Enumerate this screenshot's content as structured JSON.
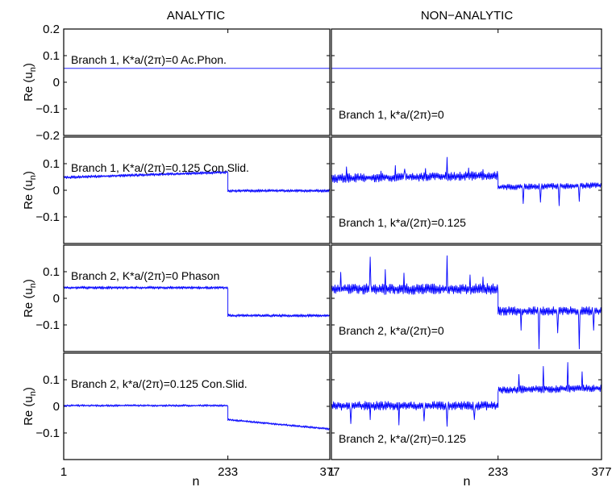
{
  "figure": {
    "column_titles": [
      "ANALYTIC",
      "NON−ANALYTIC"
    ],
    "x_label": "n",
    "x_ticks": [
      1,
      233,
      377
    ],
    "x_tick_labels": [
      "1",
      "233",
      "377"
    ],
    "y_label": "Re (u_n)",
    "line_color": "#0000ff"
  },
  "chart_data": [
    {
      "type": "line",
      "row": 0,
      "col": 0,
      "annotation": "Branch 1, K*a/(2π)=0 Ac.Phon.",
      "ylim": [
        -0.2,
        0.2
      ],
      "y_ticks": [
        0.2,
        0.1,
        0,
        -0.1,
        -0.2
      ],
      "y_tick_labels": [
        "0.2",
        "0.1",
        "0",
        "−0.1",
        "−0.2"
      ],
      "series": [
        {
          "segments": [
            {
              "x0": 1,
              "x1": 377,
              "y0": 0.052,
              "y1": 0.052,
              "noise": 0
            }
          ]
        }
      ]
    },
    {
      "type": "line",
      "row": 0,
      "col": 1,
      "annotation": "Branch 1, k*a/(2π)=0",
      "ylim": [
        -0.2,
        0.2
      ],
      "y_ticks": [
        0.2,
        0.1,
        0,
        -0.1,
        -0.2
      ],
      "y_tick_labels": [],
      "series": [
        {
          "segments": [
            {
              "x0": 1,
              "x1": 377,
              "y0": 0.052,
              "y1": 0.052,
              "noise": 0
            }
          ]
        }
      ]
    },
    {
      "type": "line",
      "row": 1,
      "col": 0,
      "annotation": "Branch 1, K*a/(2π)=0.125 Con.Slid.",
      "ylim": [
        -0.2,
        0.2
      ],
      "y_ticks": [
        0.1,
        0,
        -0.1
      ],
      "y_tick_labels": [
        "0.1",
        "0",
        "−0.1"
      ],
      "series": [
        {
          "segments": [
            {
              "x0": 1,
              "x1": 233,
              "y0": 0.048,
              "y1": 0.068,
              "noise": 0.004
            },
            {
              "x0": 233,
              "x1": 377,
              "y0": -0.002,
              "y1": -0.002,
              "noise": 0.004
            }
          ]
        }
      ]
    },
    {
      "type": "line",
      "row": 1,
      "col": 1,
      "annotation": "Branch 1, k*a/(2π)=0.125",
      "ylim": [
        -0.2,
        0.2
      ],
      "y_ticks": [
        0.1,
        0,
        -0.1
      ],
      "y_tick_labels": [],
      "series": [
        {
          "segments": [
            {
              "x0": 1,
              "x1": 233,
              "y0": 0.045,
              "y1": 0.055,
              "noise": 0.012,
              "spikes": [
                [
                  22,
                  0.088
                ],
                [
                  70,
                  0.072
                ],
                [
                  90,
                  0.093
                ],
                [
                  103,
                  0.08
                ],
                [
                  132,
                  0.082
                ],
                [
                  162,
                  0.124
                ],
                [
                  192,
                  0.084
                ],
                [
                  212,
                  0.078
                ]
              ]
            },
            {
              "x0": 233,
              "x1": 377,
              "y0": 0.012,
              "y1": 0.018,
              "noise": 0.008,
              "spikes": [
                [
                  268,
                  -0.05
                ],
                [
                  292,
                  -0.045
                ],
                [
                  318,
                  -0.058
                ],
                [
                  346,
                  -0.042
                ]
              ]
            }
          ]
        }
      ]
    },
    {
      "type": "line",
      "row": 2,
      "col": 0,
      "annotation": "Branch 2, K*a/(2π)=0 Phason",
      "ylim": [
        -0.2,
        0.2
      ],
      "y_ticks": [
        0.1,
        0,
        -0.1
      ],
      "y_tick_labels": [
        "0.1",
        "0",
        "−0.1"
      ],
      "series": [
        {
          "segments": [
            {
              "x0": 1,
              "x1": 233,
              "y0": 0.04,
              "y1": 0.04,
              "noise": 0.004
            },
            {
              "x0": 233,
              "x1": 377,
              "y0": -0.065,
              "y1": -0.065,
              "noise": 0.004
            }
          ]
        }
      ]
    },
    {
      "type": "line",
      "row": 2,
      "col": 1,
      "annotation": "Branch 2, k*a/(2π)=0",
      "ylim": [
        -0.2,
        0.2
      ],
      "y_ticks": [
        0.1,
        0,
        -0.1
      ],
      "y_tick_labels": [],
      "series": [
        {
          "segments": [
            {
              "x0": 1,
              "x1": 233,
              "y0": 0.035,
              "y1": 0.035,
              "noise": 0.015,
              "spikes": [
                [
                  14,
                  0.098
                ],
                [
                  55,
                  0.155
                ],
                [
                  76,
                  0.108
                ],
                [
                  102,
                  0.095
                ],
                [
                  162,
                  0.16
                ],
                [
                  194,
                  0.088
                ],
                [
                  212,
                  0.08
                ]
              ]
            },
            {
              "x0": 233,
              "x1": 377,
              "y0": -0.048,
              "y1": -0.048,
              "noise": 0.012,
              "spikes": [
                [
                  265,
                  -0.12
                ],
                [
                  290,
                  -0.19
                ],
                [
                  316,
                  -0.13
                ],
                [
                  346,
                  -0.19
                ],
                [
                  366,
                  -0.12
                ]
              ]
            }
          ]
        }
      ]
    },
    {
      "type": "line",
      "row": 3,
      "col": 0,
      "annotation": "Branch 2, k*a/(2π)=0.125 Con.Slid.",
      "ylim": [
        -0.2,
        0.2
      ],
      "y_ticks": [
        0.1,
        0,
        -0.1
      ],
      "y_tick_labels": [
        "0.1",
        "0",
        "−0.1"
      ],
      "series": [
        {
          "segments": [
            {
              "x0": 1,
              "x1": 233,
              "y0": 0.003,
              "y1": 0.003,
              "noise": 0.003
            },
            {
              "x0": 233,
              "x1": 377,
              "y0": -0.05,
              "y1": -0.085,
              "noise": 0.003
            }
          ]
        }
      ]
    },
    {
      "type": "line",
      "row": 3,
      "col": 1,
      "annotation": "Branch 2, k*a/(2π)=0.125",
      "ylim": [
        -0.2,
        0.2
      ],
      "y_ticks": [
        0.1,
        0,
        -0.1
      ],
      "y_tick_labels": [],
      "series": [
        {
          "segments": [
            {
              "x0": 1,
              "x1": 233,
              "y0": 0.002,
              "y1": 0.002,
              "noise": 0.012,
              "spikes": [
                [
                  28,
                  -0.065
                ],
                [
                  55,
                  -0.05
                ],
                [
                  95,
                  -0.07
                ],
                [
                  130,
                  -0.055
                ],
                [
                  162,
                  -0.075
                ],
                [
                  200,
                  -0.05
                ]
              ]
            },
            {
              "x0": 233,
              "x1": 377,
              "y0": 0.062,
              "y1": 0.068,
              "noise": 0.01,
              "spikes": [
                [
                  262,
                  0.12
                ],
                [
                  296,
                  0.15
                ],
                [
                  330,
                  0.165
                ],
                [
                  350,
                  0.13
                ]
              ]
            }
          ]
        }
      ]
    }
  ]
}
